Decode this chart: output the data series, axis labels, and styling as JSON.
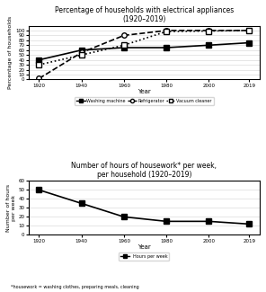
{
  "years": [
    1920,
    1940,
    1960,
    1980,
    2000,
    2019
  ],
  "washing_machine": [
    40,
    60,
    65,
    65,
    70,
    75
  ],
  "refrigerator": [
    2,
    55,
    90,
    100,
    100,
    100
  ],
  "vacuum_cleaner": [
    30,
    50,
    70,
    98,
    99,
    100
  ],
  "hours_per_week": [
    50,
    35,
    20,
    15,
    15,
    12
  ],
  "title1": "Percentage of households with electrical appliances",
  "title1b": "(1920–2019)",
  "title2": "Number of hours of housework* per week,",
  "title2b": "per household (1920–2019)",
  "ylabel1": "Percentage of households",
  "ylabel2": "Number of hours\nper week",
  "xlabel": "Year",
  "footnote": "*housework = washing clothes, preparing meals, cleaning",
  "ylim1": [
    0,
    110
  ],
  "ylim2": [
    0,
    60
  ],
  "yticks1": [
    0,
    10,
    20,
    30,
    40,
    50,
    60,
    70,
    80,
    90,
    100
  ],
  "yticks2": [
    0,
    10,
    20,
    30,
    40,
    50,
    60
  ],
  "legend1": [
    "Washing machine",
    "Refrigerator",
    "Vacuum cleaner"
  ],
  "legend2": [
    "Hours per week"
  ],
  "bg_color": "#f5f5f5"
}
